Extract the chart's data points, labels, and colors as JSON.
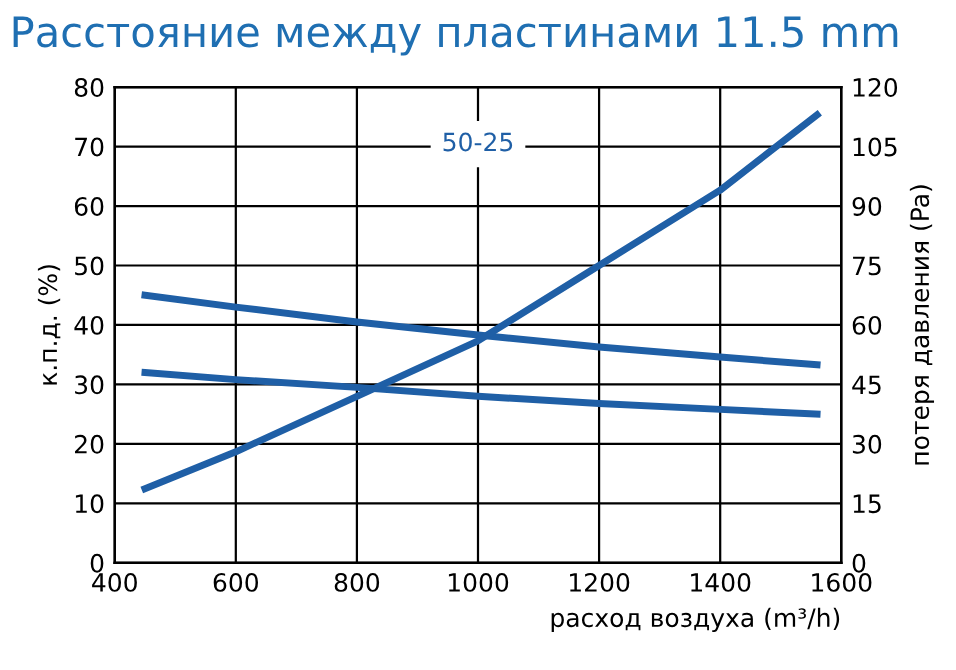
{
  "chart_data": {
    "type": "line",
    "title": "Расстояние между пластинами 11.5 mm",
    "xlabel": "расход воздуха (m³/h)",
    "ylabel": "к.п.д. (%)",
    "y2label": "потеря давления (Pa)",
    "annotations": [
      "50-25"
    ],
    "series": [
      {
        "color": "#1f5fa6",
        "x": [
          450,
          600,
          800,
          1000,
          1200,
          1400,
          1560
        ],
        "values": [
          45,
          43,
          40.5,
          38.3,
          36.3,
          34.6,
          33.3
        ]
      },
      {
        "color": "#1f5fa6",
        "x": [
          450,
          600,
          800,
          1000,
          1200,
          1400,
          1560
        ],
        "values": [
          32,
          30.8,
          29.5,
          28,
          26.8,
          25.8,
          25
        ]
      },
      {
        "color": "#1f5fa6",
        "axis": "y2",
        "x": [
          450,
          600,
          800,
          1000,
          1200,
          1400,
          1560
        ],
        "values": [
          18.7,
          28,
          42,
          56,
          75,
          94,
          113
        ]
      }
    ],
    "xlim": [
      400,
      1600
    ],
    "xticks": [
      400,
      600,
      800,
      1000,
      1200,
      1400,
      1600
    ],
    "ylim": [
      0,
      80
    ],
    "yticks": [
      0,
      10,
      20,
      30,
      40,
      50,
      60,
      70,
      80
    ],
    "y2lim": [
      0,
      120
    ],
    "y2ticks": [
      0,
      15,
      30,
      45,
      60,
      75,
      90,
      105,
      120
    ],
    "grid": true,
    "marker": "none",
    "line_style": "solid"
  }
}
